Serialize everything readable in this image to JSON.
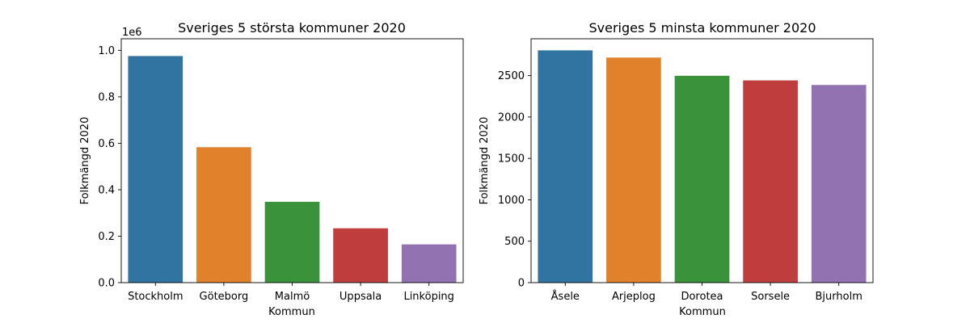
{
  "chart_data": [
    {
      "type": "bar",
      "title": "Sveriges 5 största kommuner 2020",
      "xlabel": "Kommun",
      "ylabel": "Folkmängd 2020",
      "y_offset_label": "1e6",
      "categories": [
        "Stockholm",
        "Göteborg",
        "Malmö",
        "Uppsala",
        "Linköping"
      ],
      "values": [
        975551,
        583056,
        347949,
        233839,
        164616
      ],
      "colors": [
        "#3274a1",
        "#e1812c",
        "#3a923a",
        "#c03d3e",
        "#9372b2"
      ],
      "ylim": [
        0,
        1050000
      ],
      "yticks": [
        0,
        200000,
        400000,
        600000,
        800000,
        1000000
      ],
      "ytick_labels": [
        "0.0",
        "0.2",
        "0.4",
        "0.6",
        "0.8",
        "1.0"
      ],
      "grid": false
    },
    {
      "type": "bar",
      "title": "Sveriges 5 minsta kommuner 2020",
      "xlabel": "Kommun",
      "ylabel": "Folkmängd 2020",
      "categories": [
        "Åsele",
        "Arjeplog",
        "Dorotea",
        "Sorsele",
        "Bjurholm"
      ],
      "values": [
        2805,
        2718,
        2498,
        2442,
        2387
      ],
      "colors": [
        "#3274a1",
        "#e1812c",
        "#3a923a",
        "#c03d3e",
        "#9372b2"
      ],
      "ylim": [
        0,
        2945
      ],
      "yticks": [
        0,
        500,
        1000,
        1500,
        2000,
        2500
      ],
      "ytick_labels": [
        "0",
        "500",
        "1000",
        "1500",
        "2000",
        "2500"
      ],
      "grid": false
    }
  ]
}
